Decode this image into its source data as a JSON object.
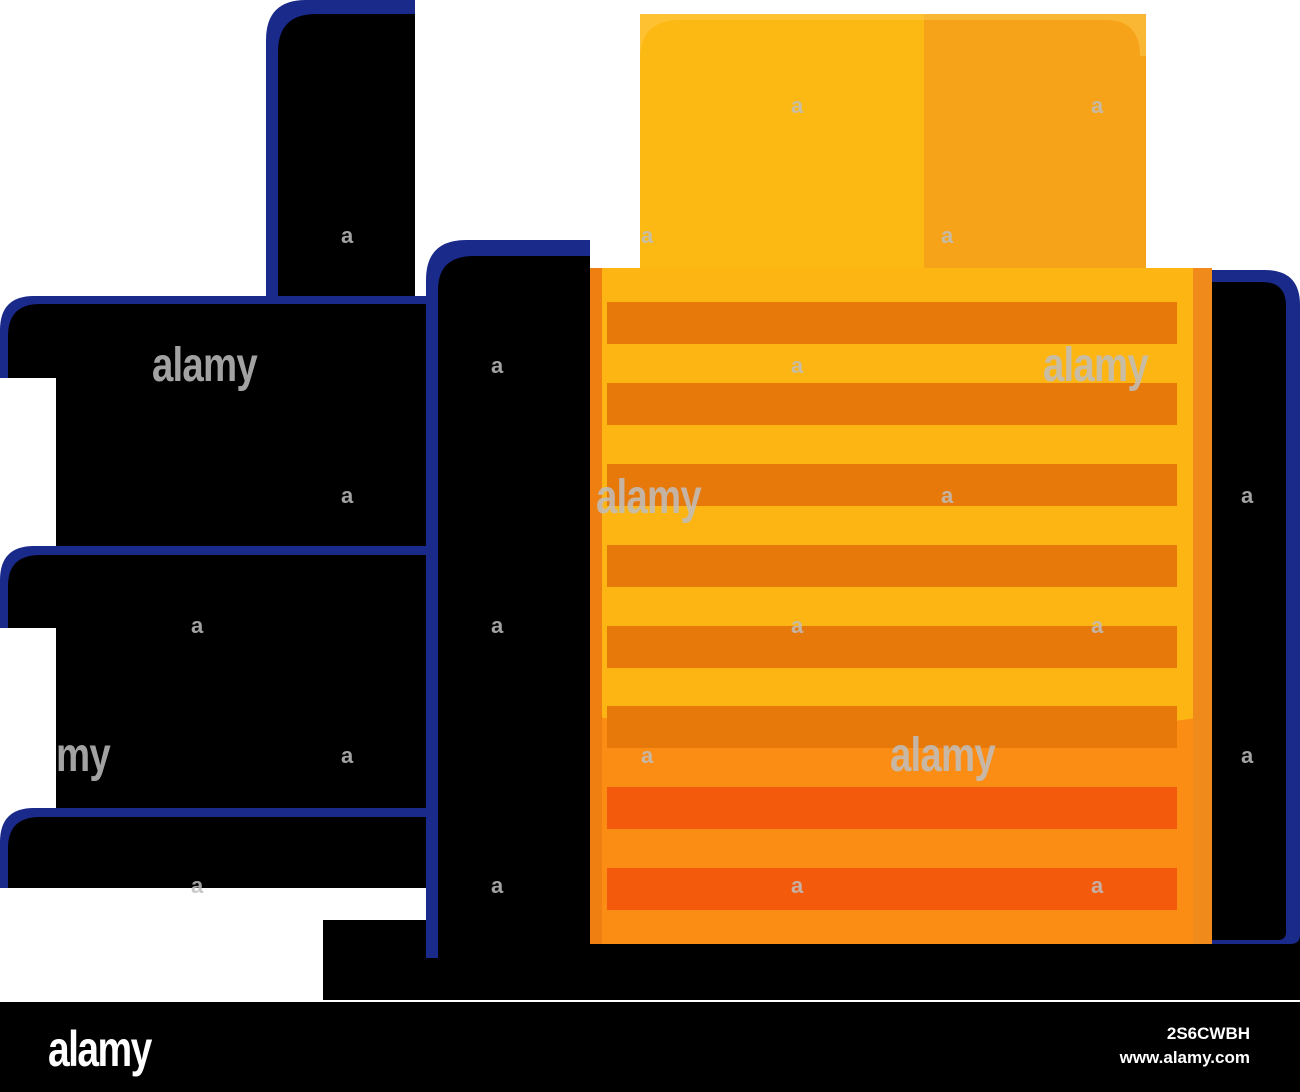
{
  "illustration": {
    "subject": "blocks-icon",
    "colors": {
      "block_fill": "#000000",
      "block_outline": "#1a2a8a",
      "top_box_left": "#fdb913",
      "top_box_right": "#f7a31a",
      "top_box_highlight": "#fdc84a",
      "main_box": "#fdb513",
      "main_box_bottom": "#fb8c14",
      "stripe": "#e6790a",
      "stripe_bottom": "#f35a0c",
      "side_bar": "#f08a1a"
    }
  },
  "watermark": {
    "big_text": "alamy",
    "partial_text": "my",
    "small_letter": "a"
  },
  "footer": {
    "logo": "alamy",
    "image_id": "2S6CWBH",
    "url": "www.alamy.com"
  }
}
